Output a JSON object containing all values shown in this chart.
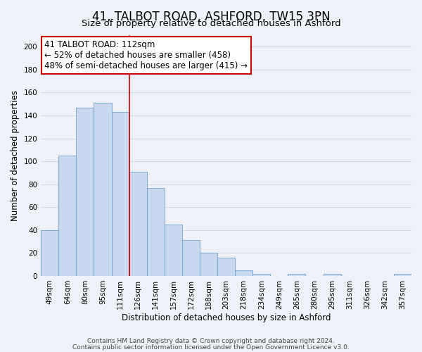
{
  "title": "41, TALBOT ROAD, ASHFORD, TW15 3PN",
  "subtitle": "Size of property relative to detached houses in Ashford",
  "xlabel": "Distribution of detached houses by size in Ashford",
  "ylabel": "Number of detached properties",
  "bar_labels": [
    "49sqm",
    "64sqm",
    "80sqm",
    "95sqm",
    "111sqm",
    "126sqm",
    "141sqm",
    "157sqm",
    "172sqm",
    "188sqm",
    "203sqm",
    "218sqm",
    "234sqm",
    "249sqm",
    "265sqm",
    "280sqm",
    "295sqm",
    "311sqm",
    "326sqm",
    "342sqm",
    "357sqm"
  ],
  "bar_values": [
    40,
    105,
    147,
    151,
    143,
    91,
    77,
    45,
    31,
    20,
    16,
    5,
    2,
    0,
    2,
    0,
    2,
    0,
    0,
    0,
    2
  ],
  "bar_color": "#c8d9ef",
  "bar_edge_color": "#6fa0cc",
  "ylim": [
    0,
    210
  ],
  "yticks": [
    0,
    20,
    40,
    60,
    80,
    100,
    120,
    140,
    160,
    180,
    200
  ],
  "vline_x": 5,
  "vline_color": "#cc0000",
  "annotation_text": "41 TALBOT ROAD: 112sqm\n← 52% of detached houses are smaller (458)\n48% of semi-detached houses are larger (415) →",
  "annotation_box_color": "#ffffff",
  "annotation_box_edge_color": "#cc0000",
  "footer_line1": "Contains HM Land Registry data © Crown copyright and database right 2024.",
  "footer_line2": "Contains public sector information licensed under the Open Government Licence v3.0.",
  "background_color": "#eef2f8",
  "grid_color": "#d0d8e8",
  "title_fontsize": 12,
  "subtitle_fontsize": 9.5,
  "axis_label_fontsize": 8.5,
  "tick_fontsize": 7.5,
  "annotation_fontsize": 8.5,
  "footer_fontsize": 6.5
}
